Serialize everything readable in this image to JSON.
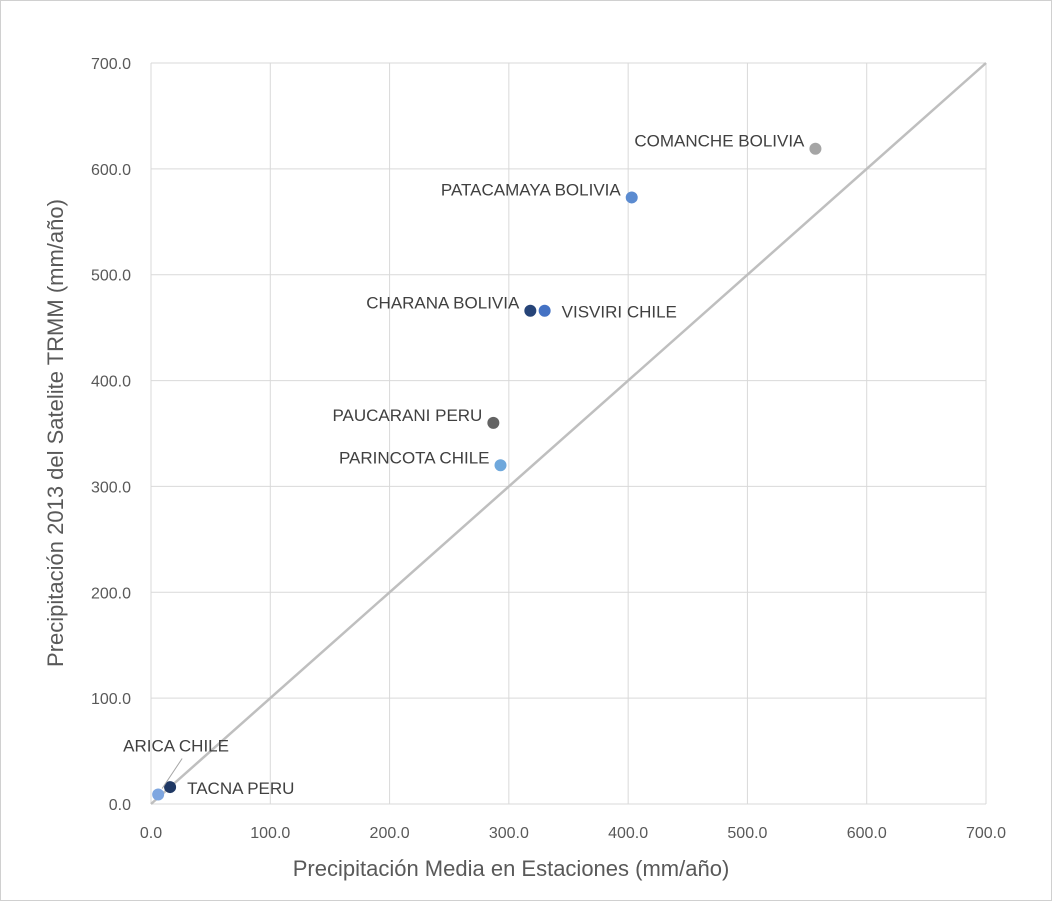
{
  "chart_data": {
    "type": "scatter",
    "title": "",
    "xlabel": "Precipitación Media en Estaciones (mm/año)",
    "ylabel": "Precipitación 2013 del Satelite TRMM (mm/año)",
    "xlim": [
      0,
      700
    ],
    "ylim": [
      0,
      700
    ],
    "xticks": [
      0,
      100,
      200,
      300,
      400,
      500,
      600,
      700
    ],
    "yticks": [
      0,
      100,
      200,
      300,
      400,
      500,
      600,
      700
    ],
    "tick_labels_x": [
      "0.0",
      "100.0",
      "200.0",
      "300.0",
      "400.0",
      "500.0",
      "600.0",
      "700.0"
    ],
    "tick_labels_y": [
      "0.0",
      "100.0",
      "200.0",
      "300.0",
      "400.0",
      "500.0",
      "600.0",
      "700.0"
    ],
    "grid": true,
    "legend": "none",
    "reference_line": {
      "from": [
        0,
        0
      ],
      "to": [
        700,
        700
      ],
      "color": "#bfbfbf"
    },
    "points": [
      {
        "label": "COMANCHE BOLIVIA",
        "x": 557,
        "y": 619,
        "color": "#a5a5a5",
        "label_side": "left"
      },
      {
        "label": "PATACAMAYA BOLIVIA",
        "x": 403,
        "y": 573,
        "color": "#5b8bd0",
        "label_side": "left"
      },
      {
        "label": "CHARANA BOLIVIA",
        "x": 318,
        "y": 466,
        "color": "#264478",
        "label_side": "left"
      },
      {
        "label": "VISVIRI CHILE",
        "x": 330,
        "y": 466,
        "color": "#4472c4",
        "label_side": "right"
      },
      {
        "label": "PAUCARANI PERU",
        "x": 287,
        "y": 360,
        "color": "#636363",
        "label_side": "left"
      },
      {
        "label": "PARINCOTA CHILE",
        "x": 293,
        "y": 320,
        "color": "#6fa8dc",
        "label_side": "left"
      },
      {
        "label": "ARICA CHILE",
        "x": 6,
        "y": 9,
        "color": "#7ea6e0",
        "label_side": "above-leader"
      },
      {
        "label": "TACNA PERU",
        "x": 16,
        "y": 16,
        "color": "#1f3864",
        "label_side": "right"
      }
    ]
  }
}
